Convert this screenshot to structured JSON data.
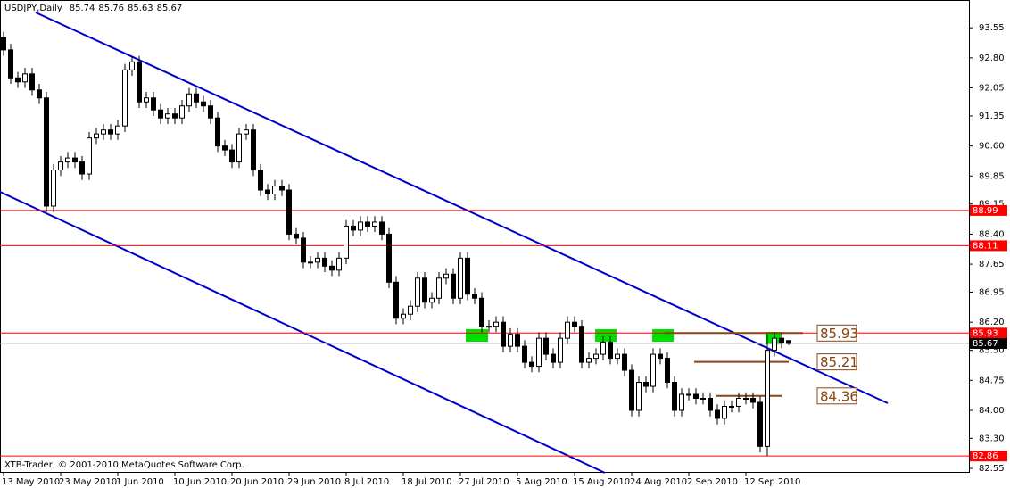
{
  "chart_data": {
    "type": "candlestick",
    "symbol": "USDJPY,Daily",
    "copyright": "XTB-Trader, © 2001-2010 MetaQuotes Software Corp.",
    "categories": [
      "13 May 2010",
      null,
      null,
      null,
      null,
      null,
      null,
      null,
      "23 May 2010",
      null,
      null,
      null,
      null,
      null,
      null,
      null,
      "1 Jun 2010",
      null,
      null,
      null,
      null,
      null,
      null,
      null,
      "10 Jun 2010",
      null,
      null,
      null,
      null,
      null,
      null,
      null,
      "20 Jun 2010",
      null,
      null,
      null,
      null,
      null,
      null,
      null,
      "29 Jun 2010",
      null,
      null,
      null,
      null,
      null,
      null,
      null,
      "8 Jul 2010",
      null,
      null,
      null,
      null,
      null,
      null,
      null,
      "18 Jul 2010",
      null,
      null,
      null,
      null,
      null,
      null,
      null,
      "27 Jul 2010",
      null,
      null,
      null,
      null,
      null,
      null,
      null,
      "5 Aug 2010",
      null,
      null,
      null,
      null,
      null,
      null,
      null,
      "15 Aug 2010",
      null,
      null,
      null,
      null,
      null,
      null,
      null,
      "24 Aug 2010",
      null,
      null,
      null,
      null,
      null,
      null,
      null,
      "2 Sep 2010",
      null,
      null,
      null,
      null,
      null,
      null,
      null,
      "12 Sep 2010",
      null,
      null,
      null,
      null,
      null,
      null
    ],
    "open": [
      93.3,
      93.0,
      92.3,
      92.2,
      92.4,
      92.0,
      91.8,
      89.1,
      90.0,
      90.2,
      90.3,
      90.2,
      89.9,
      90.8,
      90.9,
      91.0,
      90.9,
      91.1,
      92.5,
      92.7,
      91.7,
      91.8,
      91.5,
      91.3,
      91.4,
      91.3,
      91.6,
      91.9,
      91.7,
      91.6,
      91.3,
      90.6,
      90.5,
      90.2,
      90.9,
      91.0,
      90.0,
      89.5,
      89.4,
      89.6,
      89.5,
      88.4,
      88.3,
      87.7,
      87.7,
      87.8,
      87.6,
      87.5,
      87.8,
      88.6,
      88.5,
      88.7,
      88.6,
      88.7,
      88.4,
      87.2,
      86.3,
      86.4,
      86.6,
      87.3,
      86.7,
      86.8,
      87.3,
      87.4,
      86.8,
      87.8,
      86.9,
      86.8,
      86.1,
      86.1,
      86.2,
      85.6,
      85.9,
      85.6,
      85.2,
      85.1,
      85.8,
      85.4,
      85.2,
      85.8,
      86.2,
      86.1,
      85.2,
      85.3,
      85.4,
      85.7,
      85.3,
      85.4,
      85.0,
      84.0,
      84.7,
      84.6,
      85.4,
      85.3,
      84.7,
      84.0,
      84.4,
      84.4,
      84.3,
      84.3,
      84.0,
      83.8,
      84.1,
      84.1,
      84.3,
      84.3,
      84.2,
      83.1,
      85.5,
      85.8,
      85.74
    ],
    "high": [
      93.45,
      93.15,
      92.45,
      92.55,
      92.55,
      92.15,
      91.95,
      90.15,
      90.35,
      90.45,
      90.45,
      90.35,
      90.95,
      91.05,
      91.15,
      91.15,
      91.25,
      92.65,
      92.85,
      92.85,
      91.95,
      91.95,
      91.65,
      91.55,
      91.55,
      91.75,
      92.05,
      92.05,
      91.85,
      91.75,
      91.45,
      90.75,
      90.65,
      91.05,
      91.15,
      91.15,
      90.15,
      89.65,
      89.75,
      89.75,
      89.65,
      88.55,
      88.45,
      87.85,
      87.95,
      87.95,
      87.75,
      87.95,
      88.75,
      88.75,
      88.85,
      88.85,
      88.85,
      88.85,
      88.55,
      87.35,
      86.55,
      86.75,
      87.45,
      87.45,
      86.95,
      87.45,
      87.55,
      87.55,
      87.95,
      87.95,
      87.05,
      86.95,
      86.25,
      86.35,
      86.35,
      86.05,
      86.05,
      85.75,
      85.35,
      85.95,
      85.95,
      85.55,
      85.95,
      86.35,
      86.35,
      86.25,
      85.45,
      85.55,
      85.85,
      85.85,
      85.55,
      85.55,
      85.15,
      84.85,
      84.85,
      85.55,
      85.55,
      85.45,
      84.85,
      84.55,
      84.55,
      84.55,
      84.45,
      84.45,
      84.15,
      84.25,
      84.25,
      84.45,
      84.45,
      84.45,
      84.35,
      85.9,
      85.95,
      85.95,
      85.76
    ],
    "low": [
      92.85,
      92.15,
      92.05,
      92.05,
      91.85,
      91.65,
      88.95,
      88.95,
      89.85,
      90.05,
      90.05,
      89.75,
      89.75,
      90.65,
      90.75,
      90.75,
      90.75,
      90.95,
      92.35,
      91.55,
      91.55,
      91.35,
      91.15,
      91.15,
      91.15,
      91.15,
      91.45,
      91.55,
      91.45,
      91.15,
      90.45,
      90.35,
      90.05,
      90.05,
      90.75,
      89.85,
      89.35,
      89.25,
      89.25,
      89.35,
      88.25,
      88.15,
      87.55,
      87.55,
      87.55,
      87.45,
      87.35,
      87.35,
      87.65,
      88.35,
      88.35,
      88.45,
      88.45,
      88.25,
      87.05,
      86.15,
      86.15,
      86.25,
      86.45,
      86.55,
      86.55,
      86.65,
      87.15,
      86.65,
      86.65,
      86.75,
      86.65,
      85.95,
      85.95,
      85.95,
      85.45,
      85.45,
      85.45,
      85.05,
      84.95,
      84.95,
      85.25,
      85.05,
      85.05,
      85.65,
      85.95,
      85.05,
      85.05,
      85.15,
      85.25,
      85.15,
      85.15,
      84.85,
      83.85,
      83.85,
      84.45,
      84.45,
      85.15,
      84.55,
      83.85,
      83.85,
      84.25,
      84.15,
      84.15,
      83.85,
      83.65,
      83.65,
      83.95,
      83.95,
      84.15,
      84.05,
      82.95,
      82.86,
      85.35,
      85.55,
      85.63
    ],
    "close": [
      93.0,
      92.3,
      92.2,
      92.4,
      92.0,
      91.8,
      89.1,
      90.0,
      90.2,
      90.3,
      90.2,
      89.9,
      90.8,
      90.9,
      91.0,
      90.9,
      91.1,
      92.5,
      92.7,
      91.7,
      91.8,
      91.5,
      91.3,
      91.4,
      91.3,
      91.6,
      91.9,
      91.7,
      91.6,
      91.3,
      90.6,
      90.5,
      90.2,
      90.9,
      91.0,
      90.0,
      89.5,
      89.4,
      89.6,
      89.5,
      88.4,
      88.3,
      87.7,
      87.7,
      87.8,
      87.6,
      87.5,
      87.8,
      88.6,
      88.5,
      88.7,
      88.6,
      88.7,
      88.4,
      87.2,
      86.3,
      86.4,
      86.6,
      87.3,
      86.7,
      86.8,
      87.3,
      87.4,
      86.8,
      87.8,
      86.9,
      86.8,
      86.1,
      86.1,
      86.2,
      85.6,
      85.9,
      85.6,
      85.2,
      85.1,
      85.8,
      85.4,
      85.2,
      85.8,
      86.2,
      86.1,
      85.2,
      85.3,
      85.4,
      85.7,
      85.3,
      85.4,
      85.0,
      84.0,
      84.7,
      84.6,
      85.4,
      85.3,
      84.7,
      84.0,
      84.4,
      84.4,
      84.3,
      84.3,
      84.0,
      83.8,
      84.1,
      84.1,
      84.3,
      84.3,
      84.2,
      83.1,
      85.5,
      85.8,
      85.7,
      85.67
    ],
    "ylim": [
      82.44,
      94.2
    ],
    "yticks": [
      93.55,
      {
        "value": 92.8,
        "label": "92.80"
      },
      92.05,
      91.35,
      {
        "value": 90.6,
        "label": "90.60"
      },
      89.85,
      89.15,
      {
        "value": 88.4,
        "label": "88.40"
      },
      87.65,
      86.95,
      {
        "value": 86.2,
        "label": "86.20"
      },
      {
        "value": 85.5,
        "label": "85.50"
      },
      84.75,
      {
        "value": 84.0,
        "label": "84.00"
      },
      {
        "value": 83.3,
        "label": "83.30"
      },
      82.55
    ],
    "levels": [
      88.99,
      88.11,
      85.93,
      82.86
    ],
    "level_color": "#ff0000",
    "annotations": [
      85.93,
      85.21,
      84.36
    ],
    "annotation_color": "#8b4513"
  }
}
